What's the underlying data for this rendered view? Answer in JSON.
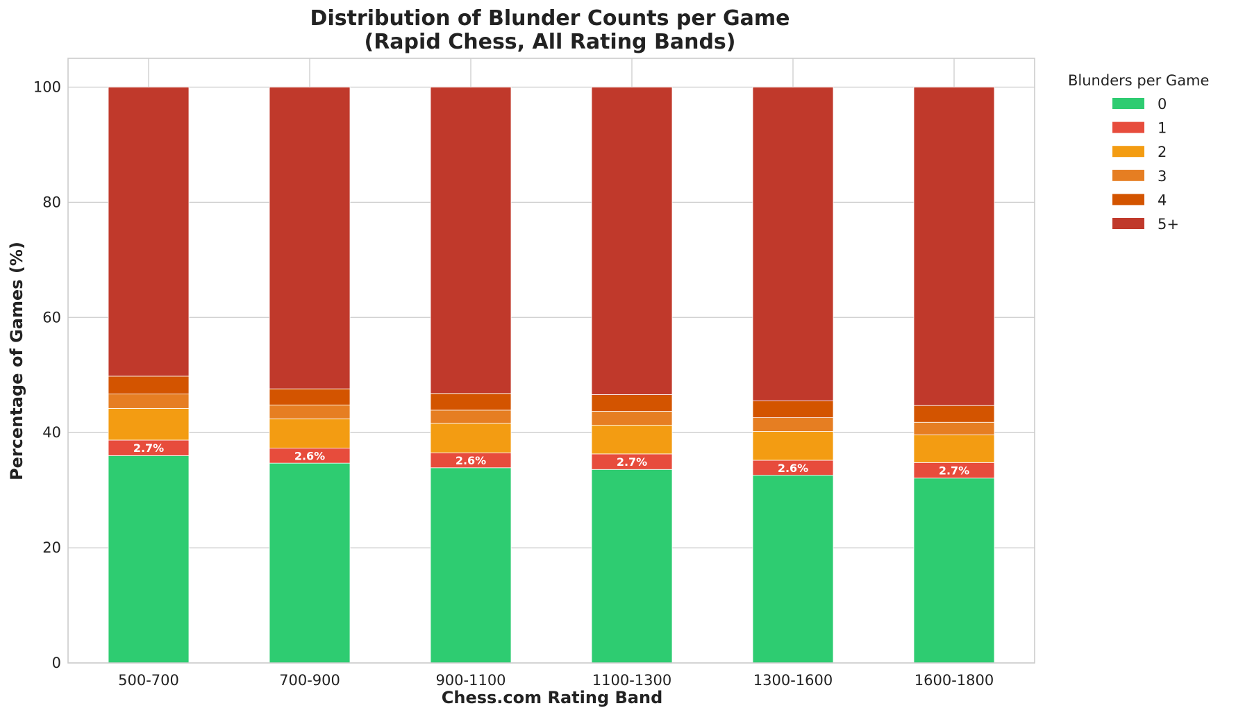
{
  "chart_data": {
    "type": "bar",
    "stacked": true,
    "title": "Distribution of Blunder Counts per Game",
    "subtitle": "(Rapid Chess, All Rating Bands)",
    "xlabel": "Chess.com Rating Band",
    "ylabel": "Percentage of Games (%)",
    "ylim": [
      0,
      105
    ],
    "yticks": [
      0,
      20,
      40,
      60,
      80,
      100
    ],
    "grid": true,
    "legend_title": "Blunders per Game",
    "legend_position": "outside-right",
    "categories": [
      "500-700",
      "700-900",
      "900-1100",
      "1100-1300",
      "1300-1600",
      "1600-1800"
    ],
    "series": [
      {
        "name": "0",
        "color": "#2ecc71",
        "values": [
          36.0,
          34.7,
          33.9,
          33.6,
          32.6,
          32.1
        ]
      },
      {
        "name": "1",
        "color": "#e74c3c",
        "values": [
          2.7,
          2.6,
          2.6,
          2.7,
          2.6,
          2.7
        ]
      },
      {
        "name": "2",
        "color": "#f39c12",
        "values": [
          5.5,
          5.1,
          5.1,
          5.0,
          5.0,
          4.8
        ]
      },
      {
        "name": "3",
        "color": "#e67e22",
        "values": [
          2.5,
          2.4,
          2.3,
          2.4,
          2.4,
          2.2
        ]
      },
      {
        "name": "4",
        "color": "#d35400",
        "values": [
          3.1,
          2.8,
          2.9,
          2.9,
          2.9,
          2.9
        ]
      },
      {
        "name": "5+",
        "color": "#c0392b",
        "values": [
          50.2,
          52.4,
          53.2,
          53.4,
          54.5,
          55.3
        ]
      }
    ],
    "data_labels": {
      "series": "1",
      "texts": [
        "2.7%",
        "2.6%",
        "2.6%",
        "2.7%",
        "2.6%",
        "2.7%"
      ]
    }
  }
}
